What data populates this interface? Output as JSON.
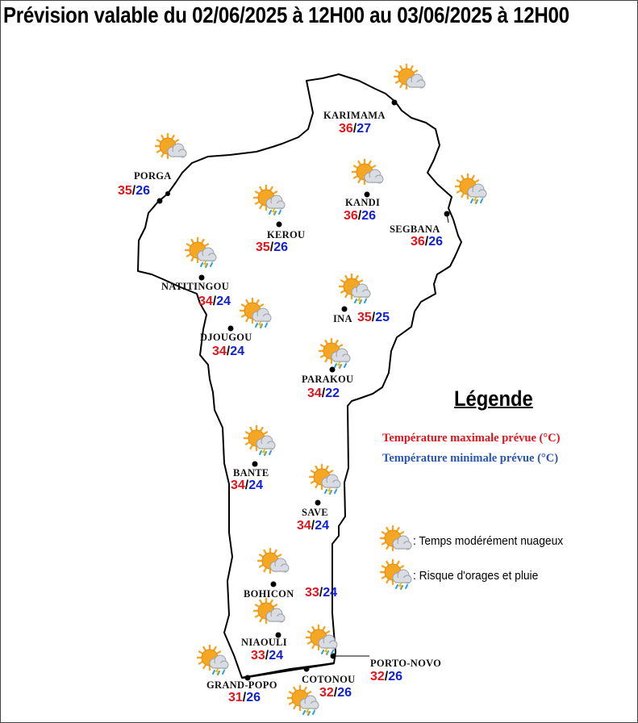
{
  "title": "Prévision valable du 02/06/2025 à 12H00 au 03/06/2025 à 12H00",
  "colors": {
    "tmax": "#e0151b",
    "tmin": "#1020d8",
    "legend_tmin": "#2855b8",
    "sun": "#f5a623",
    "cloud": "#d9dde3",
    "rain": "#2aa0e0"
  },
  "stations": [
    {
      "name": "KARIMAMA",
      "tmax": "36",
      "tmin": "27",
      "icon": "partly-cloudy-icon"
    },
    {
      "name": "PORGA",
      "tmax": "35",
      "tmin": "26",
      "icon": "partly-cloudy-icon"
    },
    {
      "name": "KANDI",
      "tmax": "36",
      "tmin": "26",
      "icon": "partly-cloudy-icon"
    },
    {
      "name": "SEGBANA",
      "tmax": "36",
      "tmin": "26",
      "icon": "storm-rain-icon"
    },
    {
      "name": "KEROU",
      "tmax": "35",
      "tmin": "26",
      "icon": "storm-rain-icon"
    },
    {
      "name": "NATITINGOU",
      "tmax": "34",
      "tmin": "24",
      "icon": "storm-rain-icon"
    },
    {
      "name": "DJOUGOU",
      "tmax": "34",
      "tmin": "24",
      "icon": "storm-rain-icon"
    },
    {
      "name": "INA",
      "tmax": "35",
      "tmin": "25",
      "icon": "storm-rain-icon"
    },
    {
      "name": "PARAKOU",
      "tmax": "34",
      "tmin": "22",
      "icon": "storm-rain-icon"
    },
    {
      "name": "BANTE",
      "tmax": "34",
      "tmin": "24",
      "icon": "storm-rain-icon"
    },
    {
      "name": "SAVE",
      "tmax": "34",
      "tmin": "24",
      "icon": "storm-rain-icon"
    },
    {
      "name": "BOHICON",
      "tmax": "33",
      "tmin": "24",
      "icon": "partly-cloudy-icon"
    },
    {
      "name": "NIAOULI",
      "tmax": "33",
      "tmin": "24",
      "icon": "partly-cloudy-icon"
    },
    {
      "name": "GRAND-POPO",
      "tmax": "31",
      "tmin": "26",
      "icon": "storm-rain-icon"
    },
    {
      "name": "COTONOU",
      "tmax": "32",
      "tmin": "26",
      "icon": "storm-rain-icon"
    },
    {
      "name": "PORTO-NOVO",
      "tmax": "32",
      "tmin": "26",
      "icon": "storm-rain-icon"
    }
  ],
  "legend": {
    "title": "Légende",
    "tmax_label": "Température maximale prévue (°C)",
    "tmin_label": "Température minimale prévue (°C)",
    "items": [
      {
        "icon": "partly-cloudy-icon",
        "label": ": Temps modérément nuageux"
      },
      {
        "icon": "storm-rain-icon",
        "label": ": Risque d'orages et pluie"
      }
    ]
  }
}
